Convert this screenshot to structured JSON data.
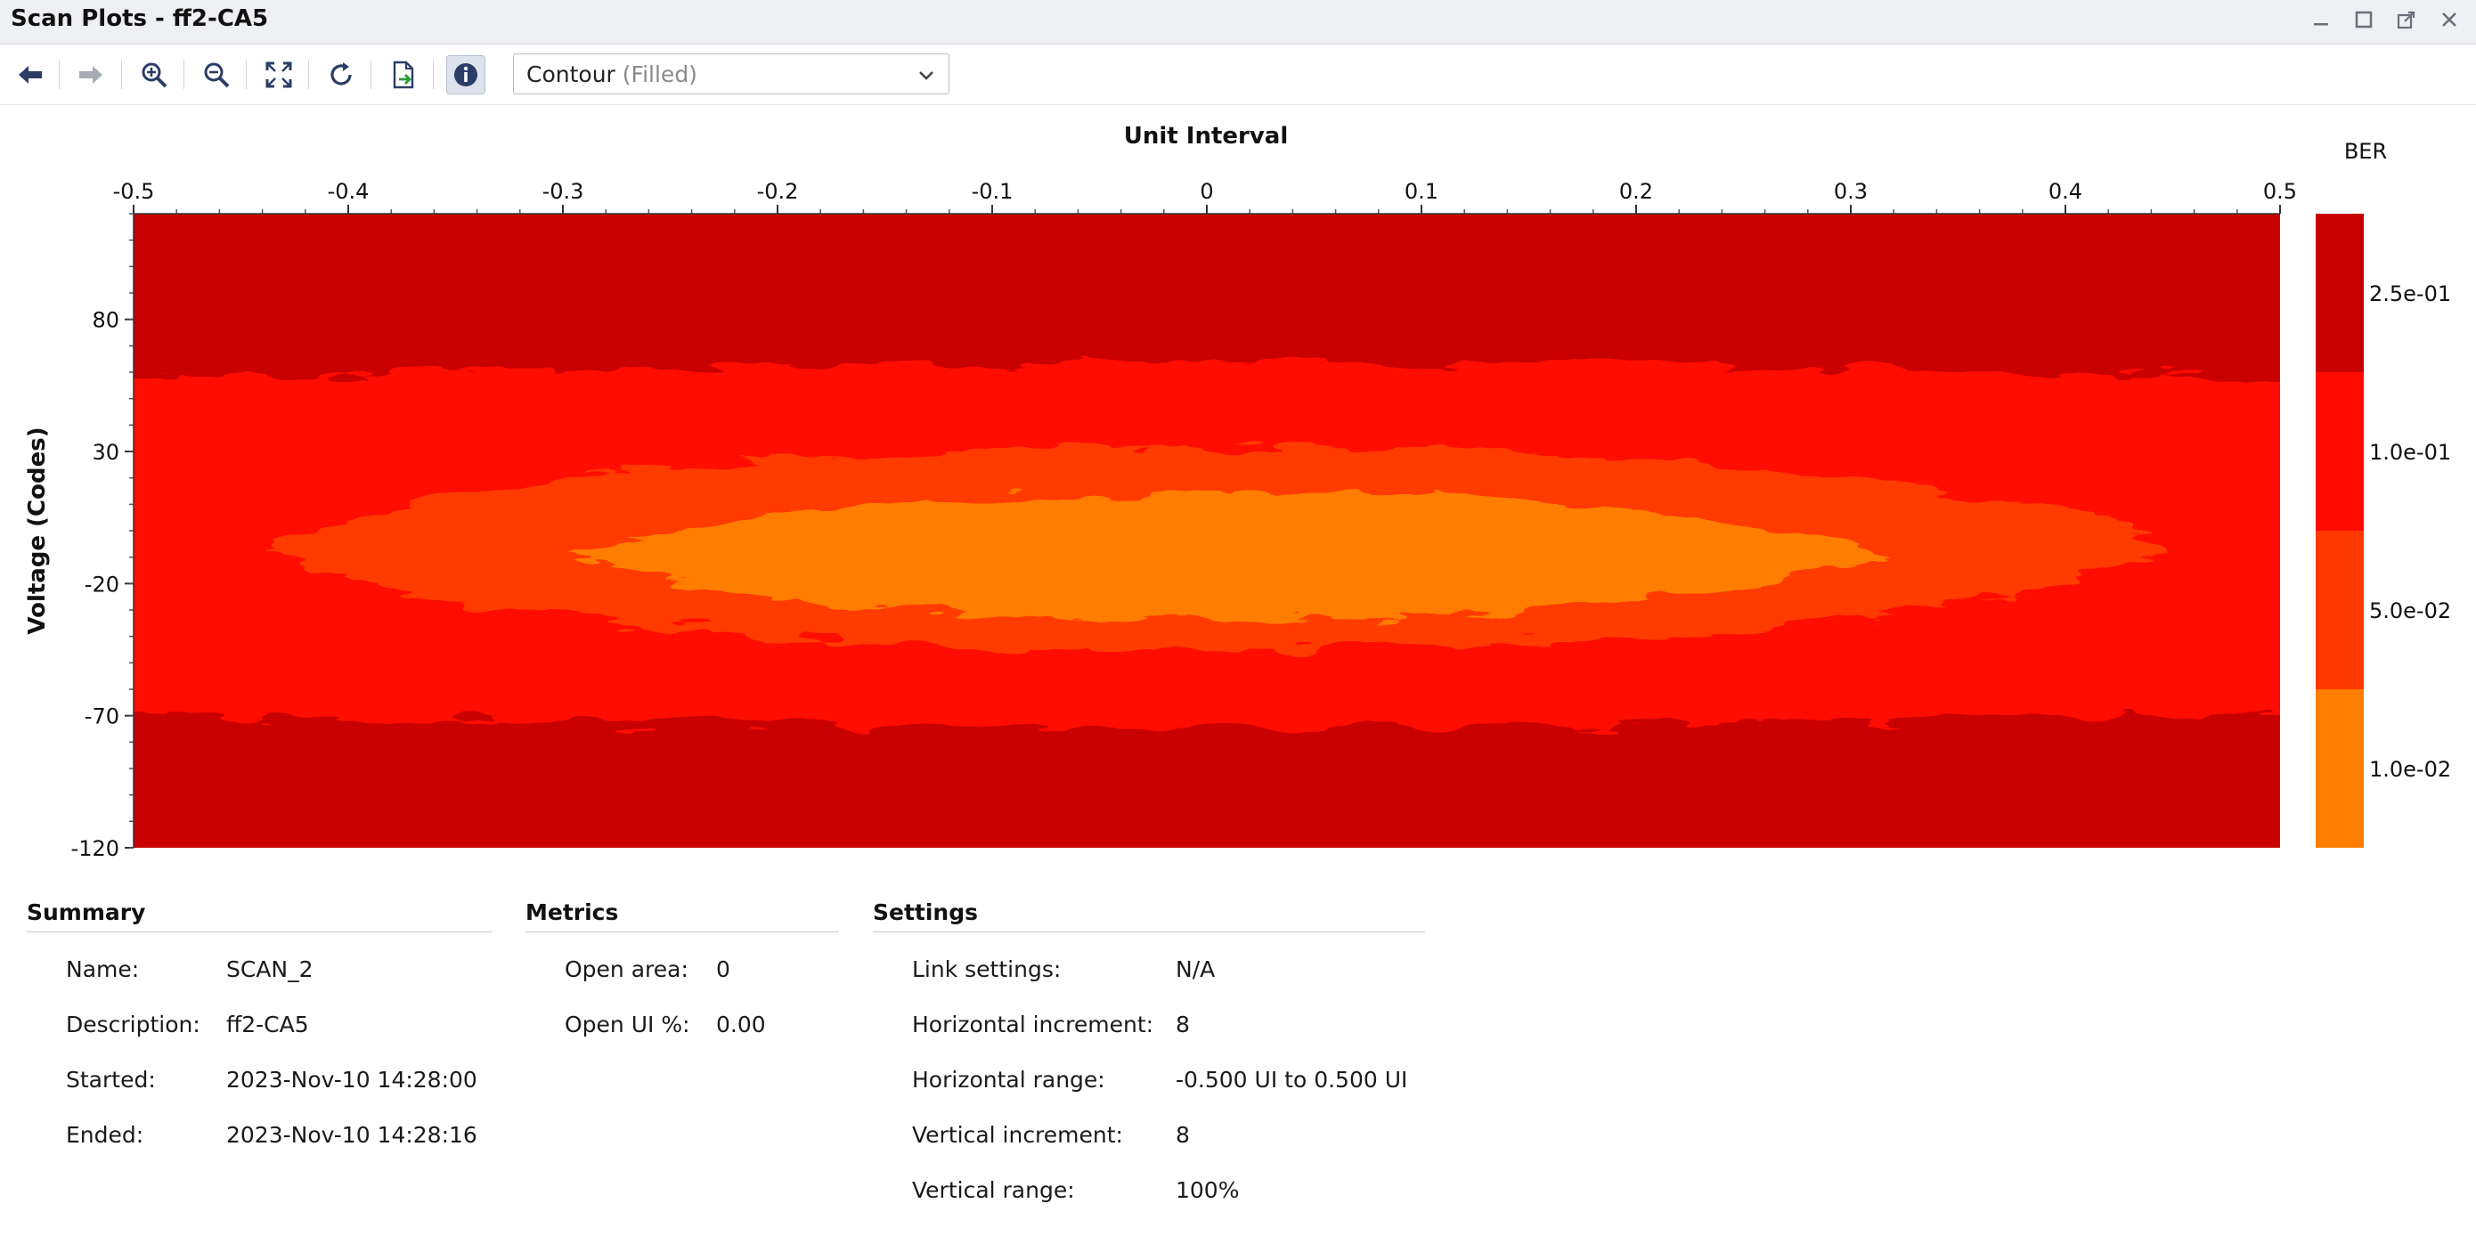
{
  "window": {
    "title": "Scan Plots - ff2-CA5"
  },
  "toolbar": {
    "buttons": [
      {
        "name": "back",
        "icon": "arrow-left-icon",
        "enabled": true
      },
      {
        "name": "forward",
        "icon": "arrow-right-icon",
        "enabled": false
      },
      {
        "name": "zoom-in",
        "icon": "zoom-in-icon",
        "enabled": true
      },
      {
        "name": "zoom-out",
        "icon": "zoom-out-icon",
        "enabled": true
      },
      {
        "name": "fit",
        "icon": "fit-to-window-icon",
        "enabled": true
      },
      {
        "name": "refresh",
        "icon": "refresh-icon",
        "enabled": true
      },
      {
        "name": "export",
        "icon": "export-icon",
        "enabled": true
      },
      {
        "name": "info",
        "icon": "info-icon",
        "enabled": true,
        "active": true
      }
    ],
    "plot_type": {
      "value": "Contour",
      "sub": "(Filled)"
    }
  },
  "chart_data": {
    "type": "heatmap",
    "subtype": "filled-contour",
    "xlabel": "Unit Interval",
    "ylabel": "Voltage (Codes)",
    "x_ticks": [
      "-0.5",
      "-0.4",
      "-0.3",
      "-0.2",
      "-0.1",
      "0",
      "0.1",
      "0.2",
      "0.3",
      "0.4",
      "0.5"
    ],
    "x_tick_values": [
      -0.5,
      -0.4,
      -0.3,
      -0.2,
      -0.1,
      0,
      0.1,
      0.2,
      0.3,
      0.4,
      0.5
    ],
    "y_ticks": [
      "80",
      "30",
      "-20",
      "-70",
      "-120"
    ],
    "y_tick_values": [
      80,
      30,
      -20,
      -70,
      -120
    ],
    "xlim": [
      -0.5,
      0.5
    ],
    "ylim": [
      -120,
      120
    ],
    "x_axis_position": "top",
    "colorbar": {
      "title": "BER",
      "labels": [
        "2.5e-01",
        "1.0e-01",
        "5.0e-02",
        "1.0e-02"
      ],
      "colors": [
        "#c80000",
        "#ff0a00",
        "#ff3a00",
        "#ff7d00"
      ]
    },
    "levels": [
      {
        "ber": "2.5e-01",
        "color": "#c80000",
        "x_range": [
          -0.5,
          0.5
        ],
        "y_range": [
          -120,
          120
        ]
      },
      {
        "ber": "1.0e-01",
        "color": "#ff0a00",
        "x_range": [
          -0.5,
          0.5
        ],
        "y_range": [
          -75,
          64
        ]
      },
      {
        "ber": "5.0e-02",
        "color": "#ff3a00",
        "x_range": [
          -0.44,
          0.45
        ],
        "y_range": [
          -58,
          45
        ]
      },
      {
        "ber": "1.0e-02",
        "color": "#ff7d00",
        "x_range": [
          -0.3,
          0.32
        ],
        "y_range": [
          -42,
          23
        ]
      }
    ]
  },
  "summary": {
    "title": "Summary",
    "rows": [
      {
        "label": "Name:",
        "value": "SCAN_2"
      },
      {
        "label": "Description:",
        "value": "ff2-CA5"
      },
      {
        "label": "Started:",
        "value": "2023-Nov-10 14:28:00"
      },
      {
        "label": "Ended:",
        "value": "2023-Nov-10 14:28:16"
      }
    ]
  },
  "metrics": {
    "title": "Metrics",
    "rows": [
      {
        "label": "Open area:",
        "value": "0"
      },
      {
        "label": "Open UI %:",
        "value": "0.00"
      }
    ]
  },
  "settings": {
    "title": "Settings",
    "rows": [
      {
        "label": "Link settings:",
        "value": "N/A"
      },
      {
        "label": "Horizontal increment:",
        "value": "8"
      },
      {
        "label": "Horizontal range:",
        "value": "-0.500 UI to 0.500 UI"
      },
      {
        "label": "Vertical increment:",
        "value": "8"
      },
      {
        "label": "Vertical range:",
        "value": "100%"
      }
    ]
  }
}
